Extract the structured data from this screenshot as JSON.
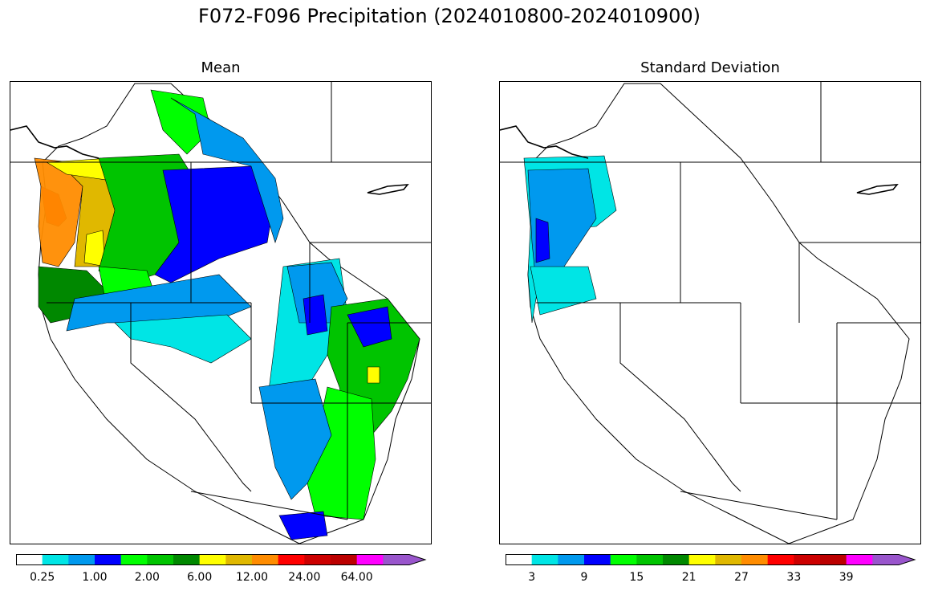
{
  "figure": {
    "title": "F072-F096 Precipitation (2024010800-2024010900)"
  },
  "panels": [
    {
      "title": "Mean",
      "colorbar": {
        "colors": [
          "#ffffff",
          "#00e5e5",
          "#0099ee",
          "#0000ff",
          "#00ff00",
          "#00c400",
          "#008800",
          "#ffff00",
          "#e0b800",
          "#ff8c00",
          "#ff0000",
          "#cc0000",
          "#bb0000",
          "#ff00ff",
          "#9955cc"
        ],
        "tick_labels": [
          "0.25",
          "1.00",
          "2.00",
          "6.00",
          "12.00",
          "24.00",
          "64.00"
        ],
        "extend": "max"
      }
    },
    {
      "title": "Standard Deviation",
      "colorbar": {
        "colors": [
          "#ffffff",
          "#00e5e5",
          "#0099ee",
          "#0000ff",
          "#00ff00",
          "#00c400",
          "#008800",
          "#ffff00",
          "#e0b800",
          "#ff8c00",
          "#ff0000",
          "#cc0000",
          "#bb0000",
          "#ff00ff",
          "#9955cc"
        ],
        "tick_labels": [
          "3",
          "9",
          "15",
          "21",
          "27",
          "33",
          "39"
        ],
        "extend": "max"
      }
    }
  ]
}
